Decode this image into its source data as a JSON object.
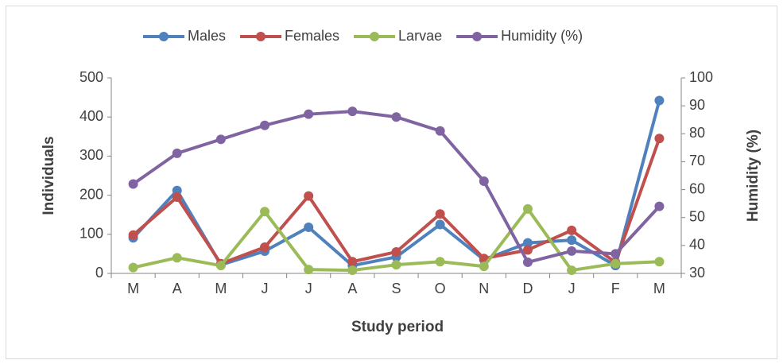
{
  "chart_data": {
    "type": "line",
    "categories": [
      "M",
      "A",
      "M",
      "J",
      "J",
      "A",
      "S",
      "O",
      "N",
      "D",
      "J",
      "F",
      "M"
    ],
    "series": [
      {
        "name": "Males",
        "color": "#4f81bd",
        "values": [
          91,
          212,
          22,
          57,
          118,
          20,
          42,
          125,
          35,
          78,
          85,
          20,
          442
        ]
      },
      {
        "name": "Females",
        "color": "#c0504d",
        "values": [
          98,
          195,
          25,
          67,
          198,
          30,
          55,
          152,
          38,
          60,
          110,
          28,
          345
        ]
      },
      {
        "name": "Larvae",
        "color": "#9bbb59",
        "values": [
          15,
          40,
          20,
          158,
          10,
          8,
          22,
          30,
          18,
          165,
          8,
          25,
          30
        ]
      },
      {
        "name": "Humidity (%)",
        "color": "#8064a2",
        "axis": "y2",
        "values": [
          62,
          73,
          78,
          83,
          87,
          88,
          86,
          81,
          63,
          34,
          38,
          37,
          54
        ]
      }
    ],
    "ylabel": "Individuals",
    "y2label": "Humidity (%)",
    "xlabel": "Study period",
    "ylim": [
      0,
      500
    ],
    "yticks": [
      0,
      100,
      200,
      300,
      400,
      500
    ],
    "y2lim": [
      30,
      100
    ],
    "y2ticks": [
      30,
      40,
      50,
      60,
      70,
      80,
      90,
      100
    ],
    "legend": "top"
  }
}
